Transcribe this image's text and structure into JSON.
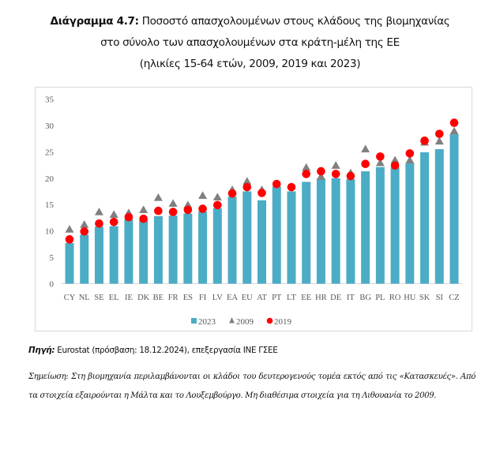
{
  "title": {
    "label": "Διάγραμμα 4.7:",
    "line1": "Ποσοστό απασχολουμένων στους κλάδους της βιομηχανίας",
    "line2": "στο σύνολο των απασχολουμένων στα κράτη-μέλη της ΕΕ",
    "line3": "(ηλικίες 15-64 ετών, 2009, 2019 και 2023)"
  },
  "chart_data": {
    "type": "bar",
    "title": "Ποσοστό απασχολουμένων στους κλάδους της βιομηχανίας στο σύνολο των απασχολουμένων στα κράτη-μέλη της ΕΕ",
    "xlabel": "",
    "ylabel": "",
    "ylim": [
      0,
      35
    ],
    "yticks": [
      "0",
      "5",
      "10",
      "15",
      "20",
      "25",
      "30",
      "35"
    ],
    "grid": false,
    "legend_position": "bottom",
    "categories": [
      "CY",
      "NL",
      "SE",
      "EL",
      "IE",
      "DK",
      "BE",
      "FR",
      "ES",
      "FI",
      "LV",
      "EA",
      "EU",
      "AT",
      "PT",
      "LT",
      "EE",
      "HR",
      "DE",
      "IT",
      "BG",
      "PL",
      "RO",
      "HU",
      "SK",
      "SI",
      "CZ"
    ],
    "series": [
      {
        "name": "2023",
        "kind": "bar",
        "color": "#4BACC6",
        "values": [
          7.7,
          9.3,
          10.8,
          10.9,
          12.2,
          12.0,
          12.8,
          12.9,
          13.3,
          13.7,
          14.3,
          16.5,
          17.5,
          15.8,
          18.3,
          17.5,
          19.3,
          19.9,
          20.0,
          19.8,
          21.3,
          22.1,
          22.0,
          22.8,
          24.9,
          25.5,
          28.3
        ]
      },
      {
        "name": "2009",
        "kind": "triangle",
        "color": "#808080",
        "values": [
          10.3,
          11.2,
          13.6,
          13.1,
          13.4,
          14.0,
          16.3,
          15.2,
          14.9,
          16.7,
          16.4,
          17.8,
          19.4,
          17.8,
          18.9,
          null,
          22.0,
          20.3,
          22.4,
          21.0,
          25.5,
          22.9,
          23.4,
          23.4,
          26.8,
          27.0,
          28.9
        ]
      },
      {
        "name": "2019",
        "kind": "circle",
        "color": "#FF0000",
        "values": [
          8.4,
          9.9,
          11.4,
          11.7,
          12.6,
          12.3,
          13.8,
          13.6,
          14.0,
          14.2,
          14.9,
          17.1,
          18.3,
          17.2,
          18.9,
          18.3,
          20.8,
          21.3,
          20.8,
          20.4,
          22.7,
          24.1,
          22.4,
          24.7,
          27.1,
          28.4,
          30.5
        ]
      }
    ]
  },
  "legend": [
    {
      "label": "2023",
      "symbol": "square",
      "color": "#4BACC6"
    },
    {
      "label": "2009",
      "symbol": "triangle",
      "color": "#808080"
    },
    {
      "label": "2019",
      "symbol": "circle",
      "color": "#FF0000"
    }
  ],
  "source": {
    "label": "Πηγή:",
    "text": "Eurostat (πρόσβαση: 18.12.2024), επεξεργασία ΙΝΕ ΓΣΕΕ"
  },
  "note": {
    "text": "Σημείωση: Στη βιομηχανία περιλαμβάνονται οι κλάδοι του δευτερογενούς τομέα εκτός από τις «Κατασκευές». Από τα στοιχεία εξαιρούνται η Μάλτα και το Λουξεμβούργο. Μη διαθέσιμα στοιχεία για τη Λιθουανία το 2009."
  }
}
